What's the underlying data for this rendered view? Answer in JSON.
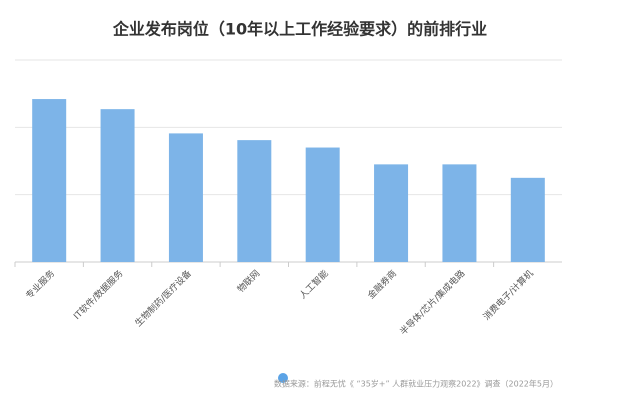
{
  "chart_data": {
    "type": "bar",
    "title": "企业发布岗位（10年以上工作经验要求）的前排行业",
    "categories": [
      "专业服务",
      "IT软件/数据服务",
      "生物制药/医疗设备",
      "物联网",
      "人工智能",
      "金融券商",
      "半导体/芯片/集成电路",
      "消费电子/计算机"
    ],
    "values": [
      2.42,
      2.27,
      1.91,
      1.81,
      1.7,
      1.45,
      1.45,
      1.25
    ],
    "color": "#7db4e8",
    "ylim": [
      0,
      3
    ],
    "yticks": [
      0,
      1,
      2,
      3
    ],
    "grid": true,
    "source": "数据来源：前程无忧《 “35岁+” 人群就业压力观察2022》调查（2022年5月）"
  }
}
